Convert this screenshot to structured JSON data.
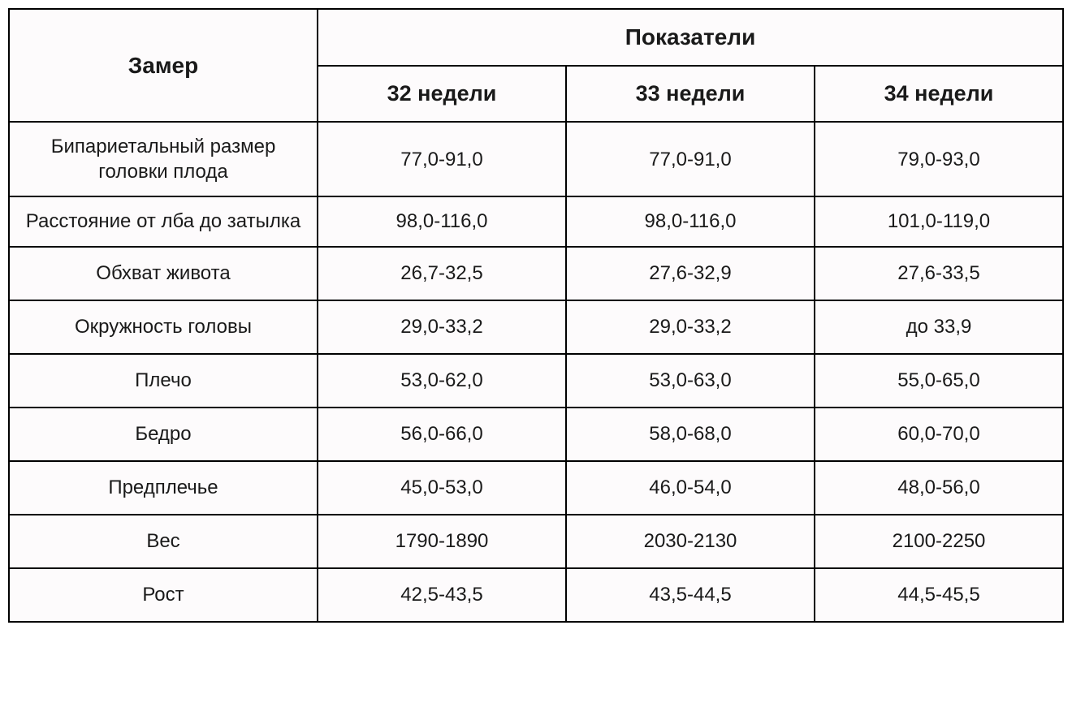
{
  "table": {
    "type": "table",
    "background_color": "#fdfbfc",
    "border_color": "#000000",
    "text_color": "#1a1a1a",
    "header": {
      "rowLabel": "Замер",
      "groupLabel": "Показатели",
      "columns": [
        "32 недели",
        "33 недели",
        "34 недели"
      ]
    },
    "rows": [
      {
        "label": "Бипариетальный размер головки плода",
        "values": [
          "77,0-91,0",
          "77,0-91,0",
          "79,0-93,0"
        ],
        "multiline": true
      },
      {
        "label": "Расстояние от лба до затылка",
        "values": [
          "98,0-116,0",
          "98,0-116,0",
          "101,0-119,0"
        ],
        "multiline": true
      },
      {
        "label": "Обхват живота",
        "values": [
          "26,7-32,5",
          "27,6-32,9",
          "27,6-33,5"
        ],
        "multiline": false
      },
      {
        "label": "Окружность головы",
        "values": [
          "29,0-33,2",
          "29,0-33,2",
          "до 33,9"
        ],
        "multiline": false
      },
      {
        "label": "Плечо",
        "values": [
          "53,0-62,0",
          "53,0-63,0",
          "55,0-65,0"
        ],
        "multiline": false
      },
      {
        "label": "Бедро",
        "values": [
          "56,0-66,0",
          "58,0-68,0",
          "60,0-70,0"
        ],
        "multiline": false
      },
      {
        "label": "Предплечье",
        "values": [
          "45,0-53,0",
          "46,0-54,0",
          "48,0-56,0"
        ],
        "multiline": false
      },
      {
        "label": "Вес",
        "values": [
          "1790-1890",
          "2030-2130",
          "2100-2250"
        ],
        "multiline": false
      },
      {
        "label": "Рост",
        "values": [
          "42,5-43,5",
          "43,5-44,5",
          "44,5-45,5"
        ],
        "multiline": false
      }
    ]
  }
}
